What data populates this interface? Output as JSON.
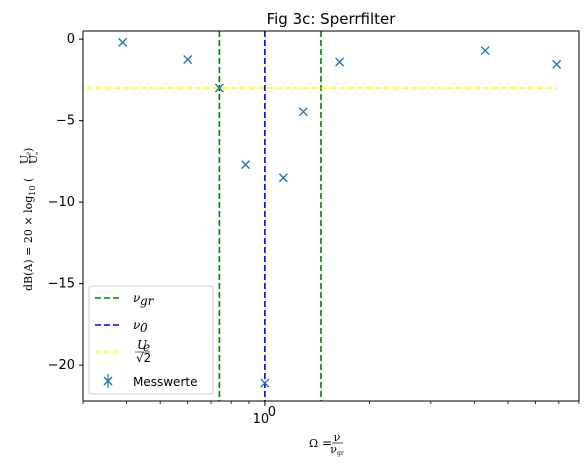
{
  "chart_data": {
    "type": "scatter",
    "title": "Fig 3c: Sperrfilter",
    "xlabel": "Ω = ν / ν_gr",
    "ylabel": "dB(A) = 20 × log10 (U_a / U_e)",
    "xscale": "log",
    "xlim": [
      0.3,
      8.0
    ],
    "ylim": [
      -22.2,
      0.5
    ],
    "x_tick_labels": [
      "10^0"
    ],
    "x_tick_values": [
      1.0
    ],
    "y_ticks": [
      0,
      -5,
      -10,
      -15,
      -20
    ],
    "legend_placement": "lower-left",
    "series": [
      {
        "name": "Messwerte",
        "marker": "x",
        "color": "#1f77b4",
        "x": [
          0.39,
          0.6,
          0.74,
          0.88,
          1.13,
          1.29,
          1.64,
          4.3,
          6.9
        ],
        "y": [
          -0.2,
          -1.25,
          -3.0,
          -7.7,
          -8.5,
          -4.45,
          -1.4,
          -0.7,
          -1.55
        ]
      },
      {
        "name": "Messwerte",
        "marker": "x",
        "color": "#1f77b4",
        "x": [
          1.0
        ],
        "y": [
          -21.1
        ]
      }
    ],
    "vlines": [
      {
        "name": "ν_gr",
        "x": 0.74,
        "color": "#008000",
        "style": "dashed"
      },
      {
        "name": "ν_gr",
        "x": 1.45,
        "color": "#008000",
        "style": "dashed"
      },
      {
        "name": "ν_0",
        "x": 1.0,
        "color": "#0000ff",
        "style": "dashed"
      }
    ],
    "hlines": [
      {
        "name": "U_e / √2",
        "y": -3.0,
        "color": "#ffff00",
        "style": "dashed"
      }
    ],
    "legend": [
      {
        "label": "ν_gr",
        "color": "#008000",
        "kind": "dashed"
      },
      {
        "label": "ν_0",
        "color": "#0000ff",
        "kind": "dashed"
      },
      {
        "label": "U_e/√2",
        "color": "#ffff00",
        "kind": "dashed"
      },
      {
        "label": "Messwerte",
        "color": "#1f77b4",
        "kind": "errorbar-x"
      }
    ]
  }
}
